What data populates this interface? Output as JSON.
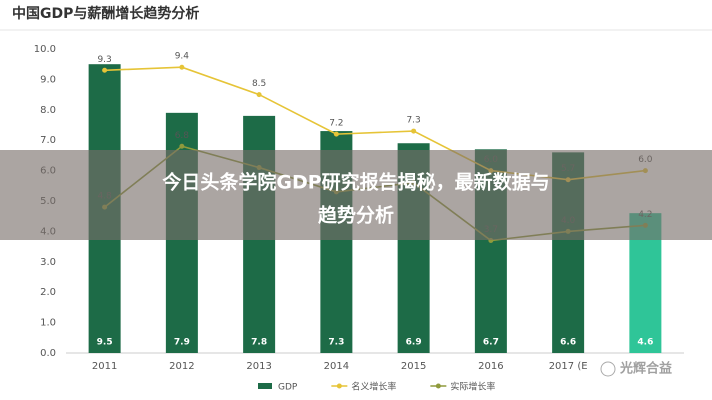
{
  "chart_data": {
    "type": "bar",
    "title": "中国GDP与薪酬增长趋势分析",
    "categories": [
      "2011",
      "2012",
      "2013",
      "2014",
      "2015",
      "2016",
      "2017 (E",
      null
    ],
    "series": [
      {
        "name": "GDP",
        "type": "bar",
        "color": "#1d6b47",
        "colors": [
          "#1d6b47",
          "#1d6b47",
          "#1d6b47",
          "#1d6b47",
          "#1d6b47",
          "#1d6b47",
          "#1d6b47",
          "#2fc598"
        ],
        "values": [
          9.5,
          7.9,
          7.8,
          7.3,
          6.9,
          6.7,
          6.6,
          4.6
        ],
        "value_labels": [
          "9.5",
          "7.9",
          "7.8",
          "7.3",
          "6.9",
          "6.7",
          "6.6",
          "4.6"
        ]
      },
      {
        "name": "名义增长率",
        "type": "line",
        "color": "#e6c437",
        "values": [
          9.3,
          9.4,
          8.5,
          7.2,
          7.3,
          6.0,
          5.7,
          6.0
        ],
        "value_labels": [
          "9.3",
          "9.4",
          "8.5",
          "7.2",
          "7.3",
          "6.0",
          "5.7",
          "6.0"
        ]
      },
      {
        "name": "实际增长率",
        "type": "line",
        "color": "#8f9a3c",
        "values": [
          4.8,
          6.8,
          6.1,
          5.3,
          5.6,
          3.7,
          4.0,
          4.2
        ],
        "value_labels": [
          "4.8",
          "6.8",
          null,
          null,
          null,
          "3.7",
          "4.0",
          "4.2"
        ]
      }
    ],
    "ylim": [
      0,
      10
    ],
    "yticks": [
      {
        "value": 0,
        "label": "0.0"
      },
      {
        "value": 1,
        "label": "1.0"
      },
      {
        "value": 2,
        "label": "2.0"
      },
      {
        "value": 3,
        "label": "3.0"
      },
      {
        "value": 4,
        "label": "4.0"
      },
      {
        "value": 5,
        "label": "5.0"
      },
      {
        "value": 6,
        "label": "6.0"
      },
      {
        "value": 7,
        "label": "7.0"
      },
      {
        "value": 8,
        "label": "8.0"
      },
      {
        "value": 9,
        "label": "9.0"
      },
      {
        "value": 10,
        "label": "10.0"
      }
    ],
    "grid": false
  },
  "overlay": {
    "headline_line1": "今日头条学院GDP研究报告揭秘，最新数据与",
    "headline_line2": "趋势分析"
  },
  "watermark": "光辉合益"
}
